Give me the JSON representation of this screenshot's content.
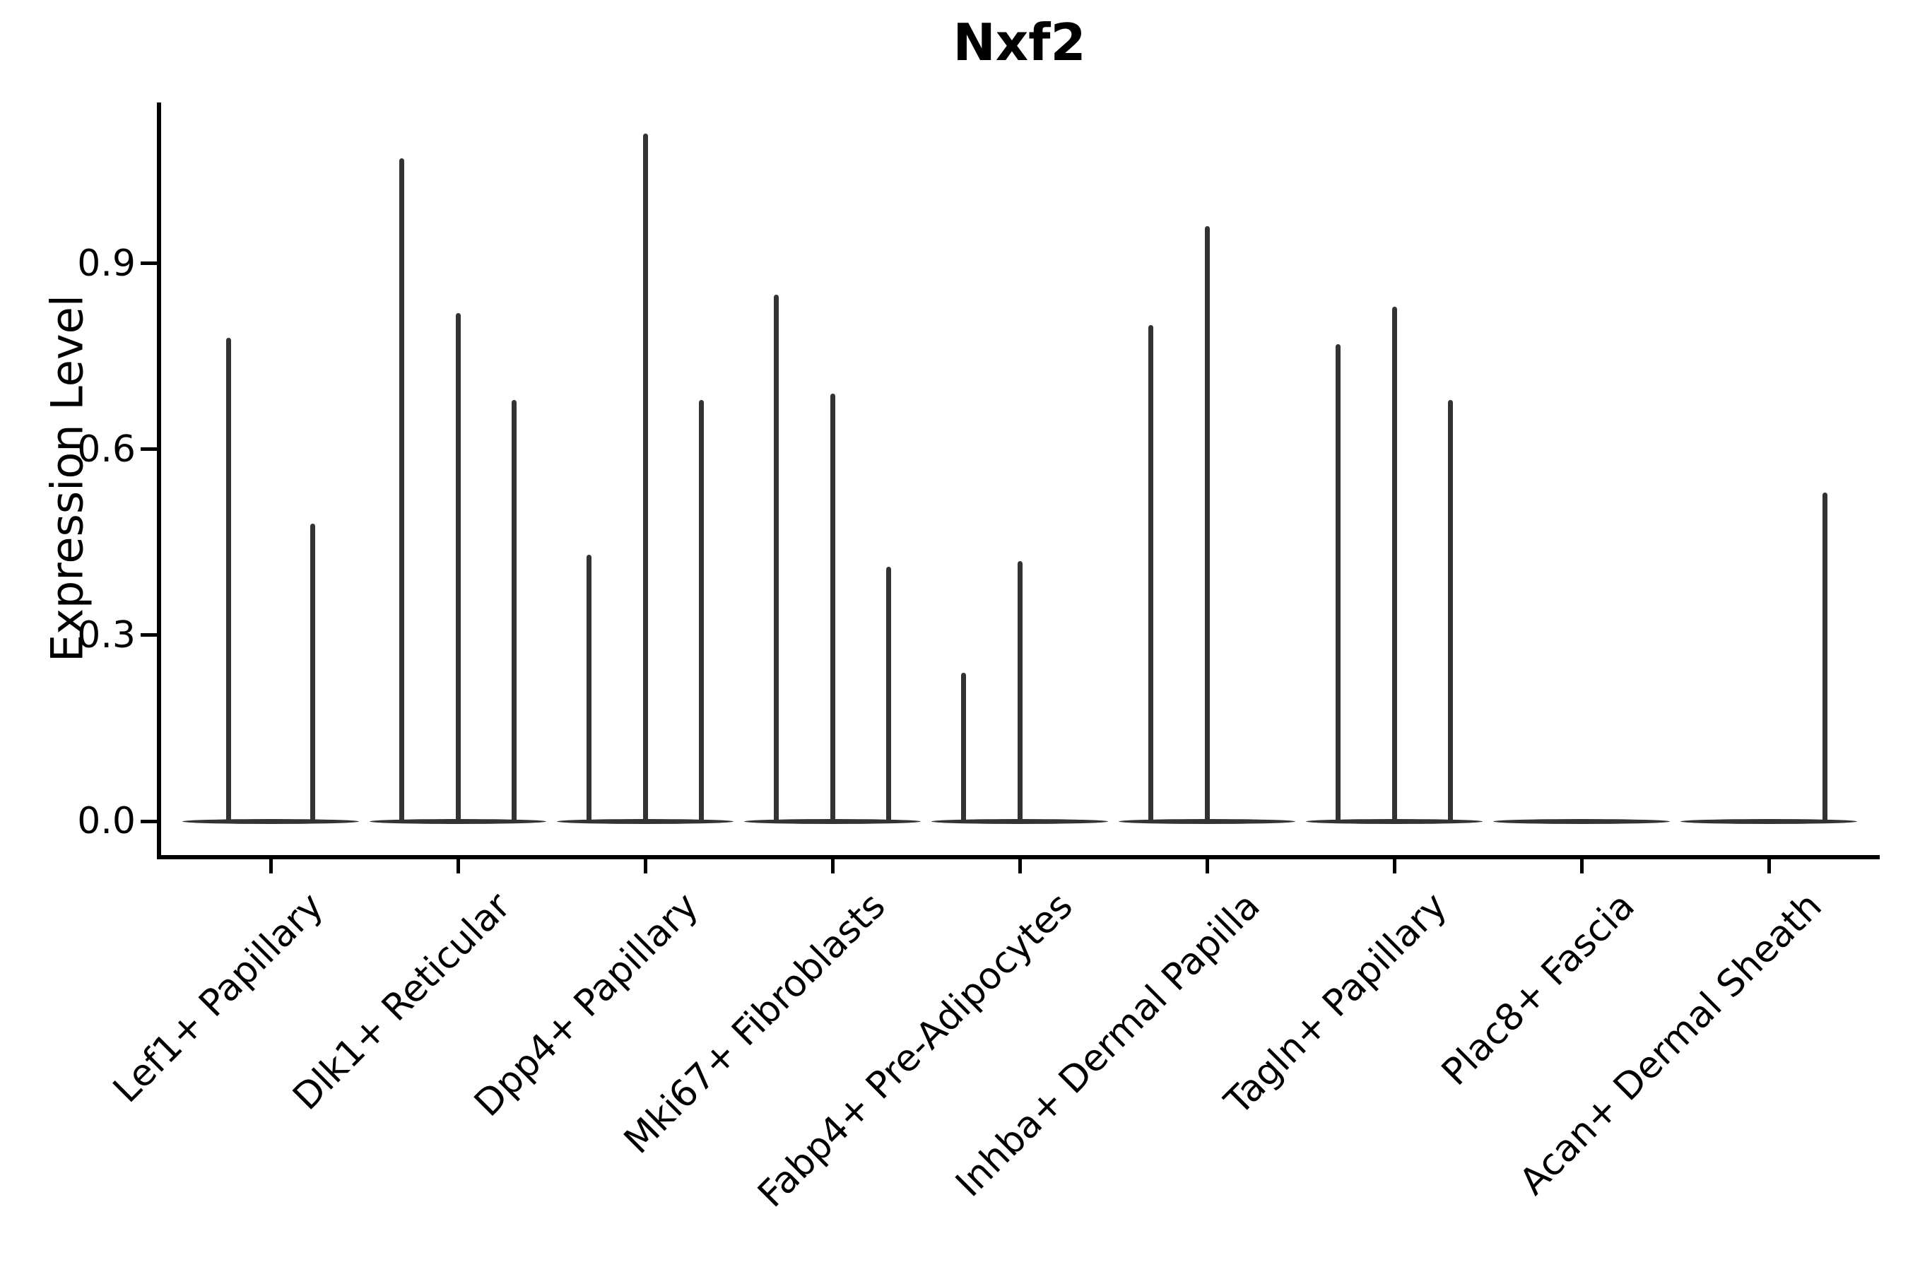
{
  "title": "Nxf2",
  "y_axis": {
    "label": "Expression Level",
    "tick_labels": [
      "0.0",
      "0.3",
      "0.6",
      "0.9"
    ],
    "tick_values": [
      0.0,
      0.3,
      0.6,
      0.9
    ],
    "max": 1.16
  },
  "colors": {
    "violin": "#333333",
    "axis": "#000000",
    "text": "#000000",
    "background": "#ffffff"
  },
  "chart_data": {
    "type": "violin",
    "title": "Nxf2",
    "xlabel": "",
    "ylabel": "Expression Level",
    "ylim": [
      0,
      1.16
    ],
    "yticks": [
      0.0,
      0.3,
      0.6,
      0.9
    ],
    "grid": false,
    "legend": "none",
    "description": "Sparse expression violins: each category shows a flat density pancake at 0 with thin vertical spikes at nonzero expression peaks; spike pos is the fraction of category spacing offset from the category center.",
    "categories": [
      {
        "label": "Lef1+ Papillary",
        "spikes": [
          {
            "pos": -0.225,
            "value": 0.78
          },
          {
            "pos": 0.225,
            "value": 0.48
          }
        ]
      },
      {
        "label": "Dlk1+ Reticular",
        "spikes": [
          {
            "pos": -0.3,
            "value": 1.07
          },
          {
            "pos": 0,
            "value": 0.82
          },
          {
            "pos": 0.3,
            "value": 0.68
          }
        ]
      },
      {
        "label": "Dpp4+ Papillary",
        "spikes": [
          {
            "pos": -0.3,
            "value": 0.43
          },
          {
            "pos": 0,
            "value": 1.11
          },
          {
            "pos": 0.3,
            "value": 0.68
          }
        ]
      },
      {
        "label": "Mki67+ Fibroblasts",
        "spikes": [
          {
            "pos": -0.3,
            "value": 0.85
          },
          {
            "pos": 0,
            "value": 0.69
          },
          {
            "pos": 0.3,
            "value": 0.41
          }
        ]
      },
      {
        "label": "Fabp4+ Pre-Adipocytes",
        "spikes": [
          {
            "pos": -0.3,
            "value": 0.24
          },
          {
            "pos": 0,
            "value": 0.42
          }
        ]
      },
      {
        "label": "Inhba+ Dermal Papilla",
        "spikes": [
          {
            "pos": -0.3,
            "value": 0.8
          },
          {
            "pos": 0,
            "value": 0.96
          }
        ]
      },
      {
        "label": "Tagln+ Papillary",
        "spikes": [
          {
            "pos": -0.3,
            "value": 0.77
          },
          {
            "pos": 0,
            "value": 0.83
          },
          {
            "pos": 0.3,
            "value": 0.68
          }
        ]
      },
      {
        "label": "Plac8+ Fascia",
        "spikes": []
      },
      {
        "label": "Acan+ Dermal Sheath",
        "spikes": [
          {
            "pos": 0.3,
            "value": 0.53
          }
        ]
      }
    ]
  }
}
